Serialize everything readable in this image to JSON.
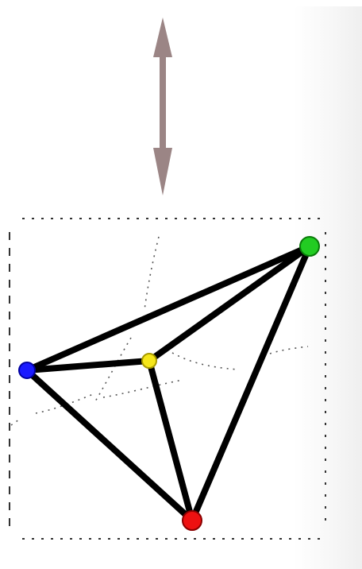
{
  "diagram": {
    "nodes": [
      {
        "id": "blue",
        "color": "#1a1aff",
        "stroke": "#0000a0"
      },
      {
        "id": "yellow",
        "color": "#f5e61a",
        "stroke": "#a89a00"
      },
      {
        "id": "green",
        "color": "#22cc22",
        "stroke": "#0a7a0a"
      },
      {
        "id": "red",
        "color": "#ee1111",
        "stroke": "#8a0000"
      }
    ],
    "edges": [
      {
        "from": "blue",
        "to": "green"
      },
      {
        "from": "blue",
        "to": "yellow"
      },
      {
        "from": "blue",
        "to": "red"
      },
      {
        "from": "yellow",
        "to": "green"
      },
      {
        "from": "yellow",
        "to": "red"
      },
      {
        "from": "red",
        "to": "green"
      }
    ],
    "edge_color": "#000000",
    "arrow_color": "#9b8585",
    "frame_color": "#333333",
    "trace_color": "#555555"
  }
}
